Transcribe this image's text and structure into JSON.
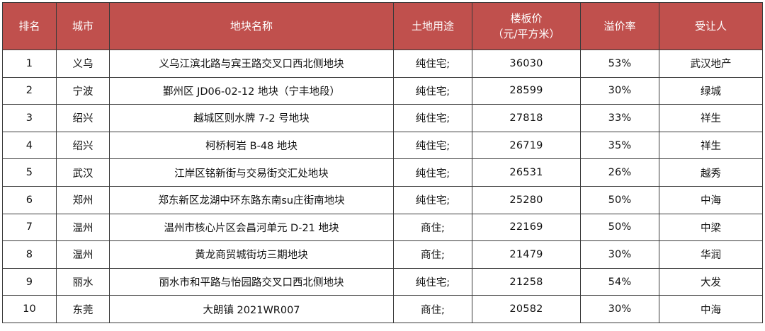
{
  "headers": {
    "rank": "排名",
    "city": "城市",
    "plot_name": "地块名称",
    "land_use": "土地用途",
    "floor_price_line1": "楼板价",
    "floor_price_line2": "（元/平方米）",
    "premium_rate": "溢价率",
    "buyer": "受让人"
  },
  "rows": [
    {
      "rank": "1",
      "city": "义乌",
      "plot_name": "义乌江滨北路与宾王路交叉口西北侧地块",
      "land_use": "纯住宅;",
      "floor_price": "36030",
      "premium_rate": "53%",
      "buyer": "武汉地产"
    },
    {
      "rank": "2",
      "city": "宁波",
      "plot_name": "鄞州区 JD06-02-12 地块（宁丰地段）",
      "land_use": "纯住宅;",
      "floor_price": "28599",
      "premium_rate": "30%",
      "buyer": "绿城"
    },
    {
      "rank": "3",
      "city": "绍兴",
      "plot_name": "越城区则水牌 7-2 号地块",
      "land_use": "纯住宅;",
      "floor_price": "27818",
      "premium_rate": "33%",
      "buyer": "祥生"
    },
    {
      "rank": "4",
      "city": "绍兴",
      "plot_name": "柯桥柯岩 B-48 地块",
      "land_use": "纯住宅;",
      "floor_price": "26719",
      "premium_rate": "35%",
      "buyer": "祥生"
    },
    {
      "rank": "5",
      "city": "武汉",
      "plot_name": "江岸区铭新街与交易街交汇处地块",
      "land_use": "纯住宅;",
      "floor_price": "26531",
      "premium_rate": "26%",
      "buyer": "越秀"
    },
    {
      "rank": "6",
      "city": "郑州",
      "plot_name": "郑东新区龙湖中环东路东南su庄街南地块",
      "land_use": "纯住宅;",
      "floor_price": "25280",
      "premium_rate": "50%",
      "buyer": "中海"
    },
    {
      "rank": "7",
      "city": "温州",
      "plot_name": "温州市核心片区会昌河单元 D-21 地块",
      "land_use": "商住;",
      "floor_price": "22169",
      "premium_rate": "50%",
      "buyer": "中梁"
    },
    {
      "rank": "8",
      "city": "温州",
      "plot_name": "黄龙商贸城街坊三期地块",
      "land_use": "商住;",
      "floor_price": "21479",
      "premium_rate": "30%",
      "buyer": "华润"
    },
    {
      "rank": "9",
      "city": "丽水",
      "plot_name": "丽水市和平路与怡园路交叉口西北侧地块",
      "land_use": "纯住宅;",
      "floor_price": "21258",
      "premium_rate": "54%",
      "buyer": "大发"
    },
    {
      "rank": "10",
      "city": "东莞",
      "plot_name": "大朗镇 2021WR007",
      "land_use": "商住;",
      "floor_price": "20582",
      "premium_rate": "30%",
      "buyer": "中海"
    }
  ],
  "colors": {
    "header_bg": "#c0504d",
    "header_text": "#ffffff",
    "border": "#3a3a3a"
  }
}
